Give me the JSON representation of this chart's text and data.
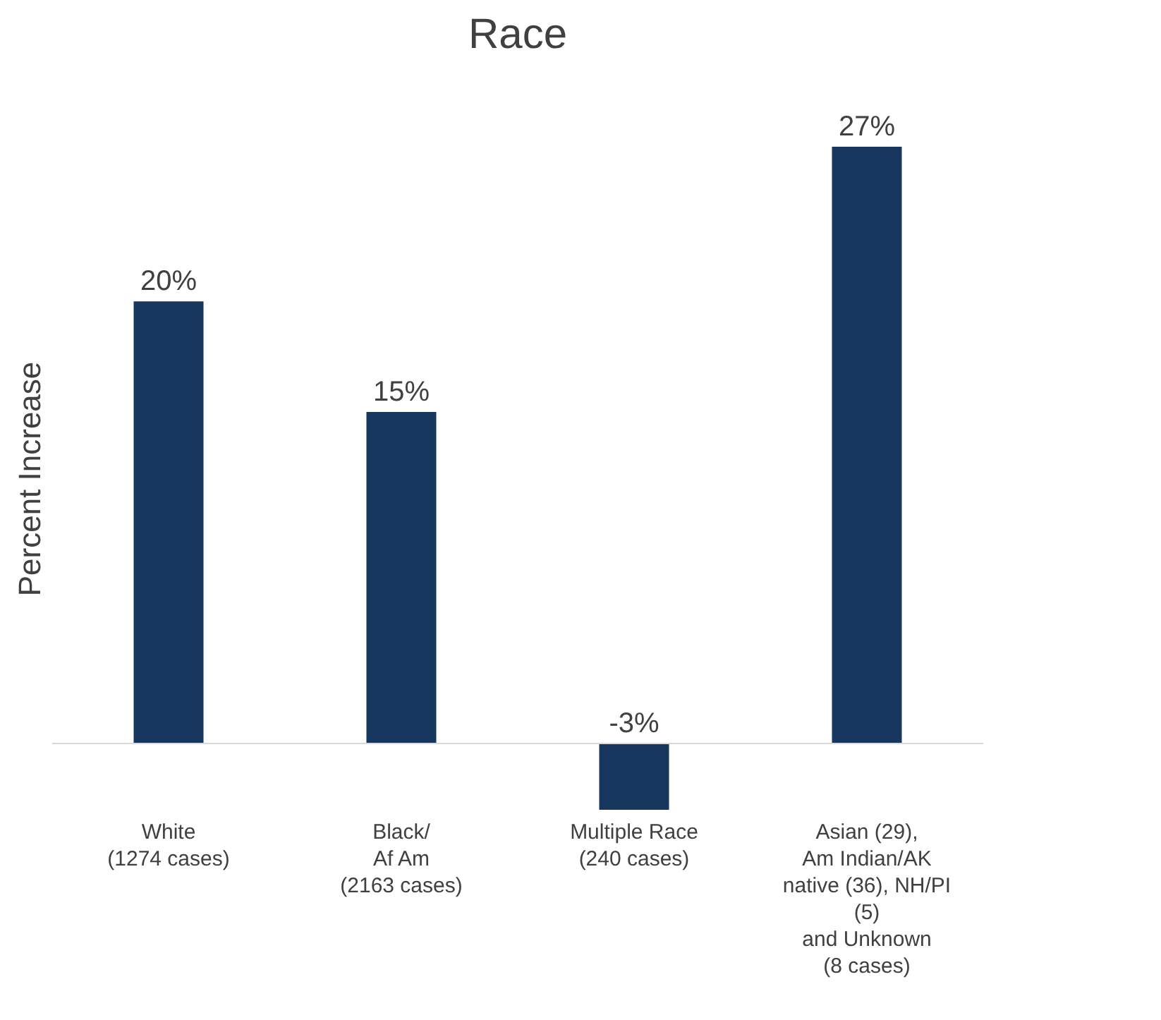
{
  "chart_data": {
    "type": "bar",
    "title": "Race",
    "ylabel": "Percent Increase",
    "categories": [
      "White\n(1274 cases)",
      "Black/\nAf Am\n(2163 cases)",
      "Multiple Race\n(240 cases)",
      "Asian (29),\nAm Indian/AK\nnative (36), NH/PI\n(5)\nand Unknown\n(8 cases)"
    ],
    "values": [
      20,
      15,
      -3,
      27
    ],
    "value_labels": [
      "20%",
      "15%",
      "-3%",
      "27%"
    ],
    "color": "#17375e"
  }
}
